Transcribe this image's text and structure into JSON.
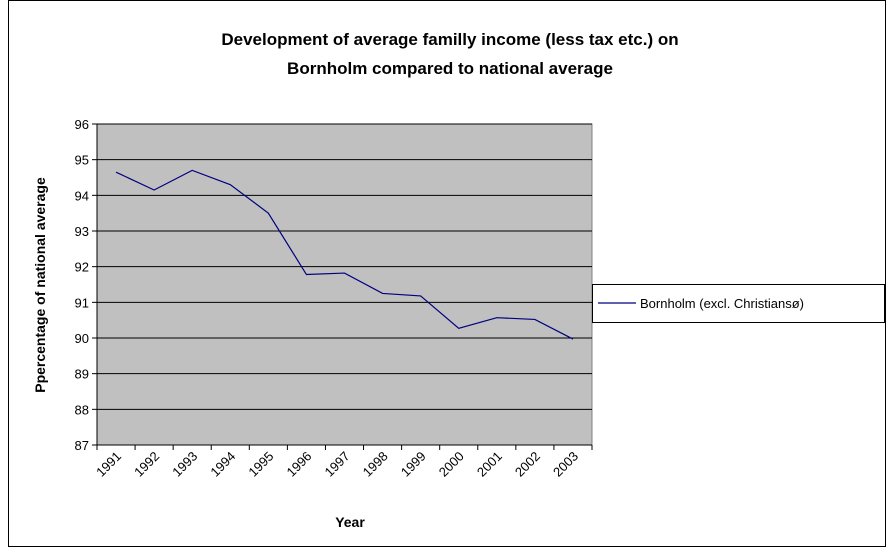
{
  "chart_data": {
    "type": "line",
    "title": [
      "Development of average familly income (less tax etc.) on",
      "Bornholm compared to national average"
    ],
    "x_label": "Year",
    "y_label": "Ppercentage of national average",
    "categories": [
      "1991",
      "1992",
      "1993",
      "1994",
      "1995",
      "1996",
      "1997",
      "1998",
      "1999",
      "2000",
      "2001",
      "2002",
      "2003"
    ],
    "series": [
      {
        "name": "Bornholm (excl. Christiansø)",
        "color": "#000080",
        "values": [
          94.65,
          94.15,
          94.7,
          94.3,
          93.5,
          91.78,
          91.82,
          91.25,
          91.18,
          90.27,
          90.57,
          90.52,
          89.97
        ]
      }
    ],
    "ylim": [
      87,
      96
    ],
    "yticks": [
      87,
      88,
      89,
      90,
      91,
      92,
      93,
      94,
      95,
      96
    ],
    "grid": true,
    "legend": "right",
    "plot_background": "#c0c0c0"
  }
}
